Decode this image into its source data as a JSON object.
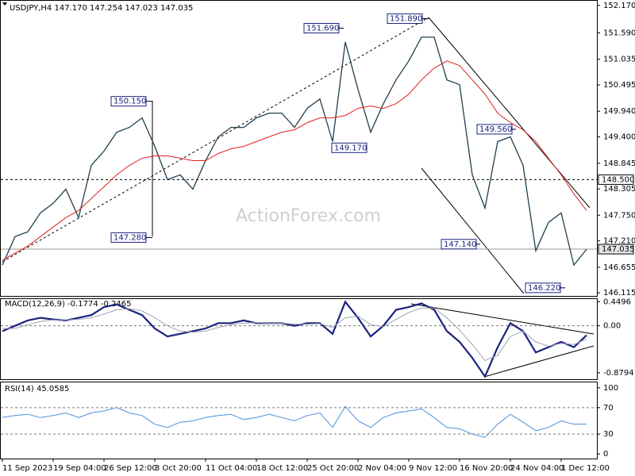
{
  "chart_data": [
    {
      "type": "line",
      "title": "USDJPY,H4  147.170 147.254 147.023 147.035",
      "watermark": "ActionForex.com",
      "ylim": [
        146.05,
        152.25
      ],
      "yticks": [
        {
          "value": 152.17,
          "label": "152.170"
        },
        {
          "value": 151.59,
          "label": "151.590"
        },
        {
          "value": 151.035,
          "label": "151.035"
        },
        {
          "value": 150.495,
          "label": "150.495"
        },
        {
          "value": 149.94,
          "label": "149.940"
        },
        {
          "value": 149.4,
          "label": "149.400"
        },
        {
          "value": 148.845,
          "label": "148.845"
        },
        {
          "value": 148.305,
          "label": "148.305"
        },
        {
          "value": 147.75,
          "label": "147.750"
        },
        {
          "value": 147.21,
          "label": "147.210"
        },
        {
          "value": 146.655,
          "label": "146.655"
        },
        {
          "value": 146.115,
          "label": "146.115"
        }
      ],
      "series": [
        {
          "color": "#1f3f4f",
          "width": 1.3,
          "values": [
            146.7,
            147.3,
            147.4,
            147.8,
            148.0,
            148.3,
            147.7,
            148.8,
            149.1,
            149.5,
            149.6,
            149.8,
            149.2,
            148.5,
            148.6,
            148.3,
            148.9,
            149.4,
            149.6,
            149.6,
            149.8,
            149.9,
            149.9,
            149.6,
            150.0,
            150.2,
            149.3,
            151.4,
            150.4,
            149.5,
            150.1,
            150.6,
            151.0,
            151.5,
            151.5,
            150.6,
            150.5,
            148.6,
            147.9,
            149.3,
            149.4,
            148.8,
            147.0,
            147.6,
            147.8,
            146.7,
            147.035
          ]
        },
        {
          "color": "#e02020",
          "width": 1,
          "values": [
            146.8,
            146.95,
            147.1,
            147.3,
            147.5,
            147.7,
            147.85,
            148.1,
            148.35,
            148.6,
            148.8,
            148.95,
            149.0,
            149.0,
            148.95,
            148.9,
            148.9,
            149.05,
            149.15,
            149.2,
            149.3,
            149.4,
            149.5,
            149.55,
            149.7,
            149.8,
            149.8,
            149.85,
            150.0,
            150.05,
            150.0,
            150.1,
            150.3,
            150.6,
            150.85,
            151.0,
            150.9,
            150.6,
            150.3,
            149.9,
            149.7,
            149.55,
            149.3,
            148.95,
            148.6,
            148.2,
            147.85
          ]
        }
      ],
      "hlines": [
        {
          "value": 148.5,
          "label": "148.500",
          "style": "dashed"
        },
        {
          "value": 147.035,
          "label": "147.035",
          "style": "solid"
        }
      ],
      "annotations": [
        {
          "value": 150.15,
          "label": "150.150"
        },
        {
          "value": 147.28,
          "label": "147.280"
        },
        {
          "value": 151.69,
          "label": "151.690"
        },
        {
          "value": 149.17,
          "label": "149.170"
        },
        {
          "value": 151.89,
          "label": "151.890"
        },
        {
          "value": 149.56,
          "label": "149.560"
        },
        {
          "value": 147.14,
          "label": "147.140"
        },
        {
          "value": 146.22,
          "label": "146.220"
        }
      ]
    },
    {
      "type": "line",
      "title": "MACD(12,26,9) -0.1774 -0.2465",
      "ylim": [
        -1.0,
        0.5
      ],
      "yticks": [
        0.4496,
        {
          "value": 0,
          "label": "0.00"
        },
        -0.8794
      ],
      "levels": [
        0
      ],
      "series": [
        {
          "color": "#1a237e",
          "width": 2.2,
          "values": [
            -0.1,
            0.0,
            0.1,
            0.15,
            0.12,
            0.1,
            0.15,
            0.2,
            0.35,
            0.4,
            0.3,
            0.2,
            -0.05,
            -0.2,
            -0.15,
            -0.1,
            -0.05,
            0.05,
            0.05,
            0.1,
            0.05,
            0.05,
            0.05,
            0.0,
            0.05,
            0.05,
            -0.15,
            0.45,
            0.15,
            -0.2,
            0.0,
            0.3,
            0.35,
            0.42,
            0.3,
            -0.1,
            -0.3,
            -0.6,
            -0.95,
            -0.4,
            0.05,
            -0.1,
            -0.5,
            -0.4,
            -0.3,
            -0.4,
            -0.1774
          ]
        },
        {
          "color": "#a0a0b4",
          "width": 1,
          "values": [
            -0.05,
            -0.05,
            0.02,
            0.08,
            0.11,
            0.11,
            0.12,
            0.15,
            0.22,
            0.3,
            0.32,
            0.28,
            0.15,
            0.0,
            -0.1,
            -0.12,
            -0.1,
            -0.03,
            0.02,
            0.05,
            0.06,
            0.05,
            0.05,
            0.03,
            0.03,
            0.04,
            -0.03,
            0.15,
            0.18,
            0.02,
            -0.02,
            0.12,
            0.25,
            0.33,
            0.33,
            0.15,
            -0.08,
            -0.35,
            -0.65,
            -0.55,
            -0.2,
            -0.1,
            -0.3,
            -0.38,
            -0.33,
            -0.35,
            -0.2465
          ]
        }
      ]
    },
    {
      "type": "line",
      "title": "RSI(14) 45.0585",
      "ylim": [
        -7,
        107
      ],
      "yticks": [
        100,
        70,
        30,
        0
      ],
      "levels": [
        70,
        30
      ],
      "series": [
        {
          "color": "#4a90d9",
          "width": 1,
          "values": [
            55,
            58,
            60,
            55,
            58,
            62,
            55,
            62,
            65,
            70,
            62,
            58,
            45,
            40,
            48,
            50,
            55,
            58,
            60,
            52,
            55,
            60,
            55,
            50,
            58,
            62,
            40,
            72,
            50,
            40,
            55,
            62,
            65,
            68,
            55,
            40,
            38,
            30,
            25,
            45,
            60,
            48,
            35,
            40,
            50,
            45,
            45.0585
          ]
        }
      ],
      "categories": [
        "11 Sep 2023",
        null,
        null,
        null,
        "19 Sep 04:00",
        null,
        null,
        null,
        "26 Sep 12:00",
        null,
        null,
        null,
        "3 Oct 20:00",
        null,
        null,
        null,
        "11 Oct 04:00",
        null,
        null,
        null,
        "18 Oct 12:00",
        null,
        null,
        null,
        "25 Oct 20:00",
        null,
        null,
        null,
        "2 Nov 04:00",
        null,
        null,
        null,
        "9 Nov 12:00",
        null,
        null,
        null,
        "16 Nov 20:00",
        null,
        null,
        null,
        "24 Nov 04:00",
        null,
        null,
        null,
        "1 Dec 12:00",
        null,
        null
      ]
    }
  ]
}
